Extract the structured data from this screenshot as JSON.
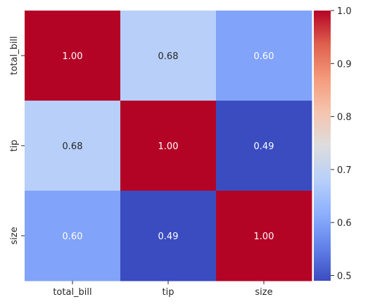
{
  "chart_data": {
    "type": "heatmap",
    "title": "",
    "xlabel": "",
    "ylabel": "",
    "x_categories": [
      "total_bill",
      "tip",
      "size"
    ],
    "y_categories": [
      "total_bill",
      "tip",
      "size"
    ],
    "matrix": [
      [
        1.0,
        0.68,
        0.6
      ],
      [
        0.68,
        1.0,
        0.49
      ],
      [
        0.6,
        0.49,
        1.0
      ]
    ],
    "annotation_labels": [
      [
        "1.00",
        "0.68",
        "0.60"
      ],
      [
        "0.68",
        "1.00",
        "0.49"
      ],
      [
        "0.60",
        "0.49",
        "1.00"
      ]
    ],
    "colormap": "coolwarm",
    "colorbar": {
      "vmin": 0.49,
      "vmax": 1.0,
      "ticks": [
        0.5,
        0.6,
        0.7,
        0.8,
        0.9,
        1.0
      ],
      "tick_labels": [
        "0.5",
        "0.6",
        "0.7",
        "0.8",
        "0.9",
        "1.0"
      ]
    }
  }
}
